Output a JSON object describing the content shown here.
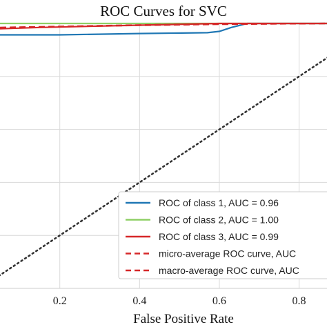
{
  "chart_data": {
    "type": "line",
    "title": "ROC Curves for SVC",
    "xlabel": "False Positive Rate",
    "ylabel": "",
    "xlim": [
      0.05,
      0.87
    ],
    "ylim": [
      0.0,
      1.0
    ],
    "x_ticks": [
      0.2,
      0.4,
      0.6,
      0.8
    ],
    "x_tick_labels": [
      "0.2",
      "0.4",
      "0.6",
      "0.8"
    ],
    "y_gridlines": [
      0.2,
      0.4,
      0.6,
      0.8
    ],
    "grid": true,
    "legend_position": "bottom-right",
    "series": [
      {
        "name": "ROC of class 1, AUC = 0.96",
        "color": "#1f77b4",
        "style": "solid",
        "x": [
          0.05,
          0.2,
          0.4,
          0.57,
          0.6,
          0.63,
          0.67,
          0.87
        ],
        "y": [
          0.957,
          0.957,
          0.962,
          0.965,
          0.97,
          0.985,
          1.0,
          1.0
        ]
      },
      {
        "name": "ROC of class 2, AUC = 1.00",
        "color": "#8ecf65",
        "style": "solid",
        "x": [
          0.05,
          0.87
        ],
        "y": [
          1.0,
          1.0
        ]
      },
      {
        "name": "ROC of class 3, AUC = 0.99",
        "color": "#d62728",
        "style": "solid",
        "x": [
          0.05,
          0.15,
          0.3,
          0.45,
          0.6,
          0.87
        ],
        "y": [
          0.98,
          0.985,
          0.99,
          0.995,
          1.0,
          1.0
        ]
      },
      {
        "name": "micro-average ROC curve, AUC",
        "color": "#d62728",
        "style": "dashed",
        "x": [
          0.05,
          0.2,
          0.4,
          0.6,
          0.87
        ],
        "y": [
          0.983,
          0.988,
          0.993,
          0.997,
          1.0
        ]
      },
      {
        "name": "macro-average ROC curve, AUC",
        "color": "#d62728",
        "style": "dashed",
        "x": [
          0.05,
          0.25,
          0.5,
          0.87
        ],
        "y": [
          0.985,
          0.99,
          0.997,
          1.0
        ]
      }
    ],
    "diagonal": {
      "color": "#333333",
      "style": "dotted",
      "x": [
        0.0,
        1.0
      ],
      "y": [
        0.0,
        1.0
      ]
    }
  }
}
